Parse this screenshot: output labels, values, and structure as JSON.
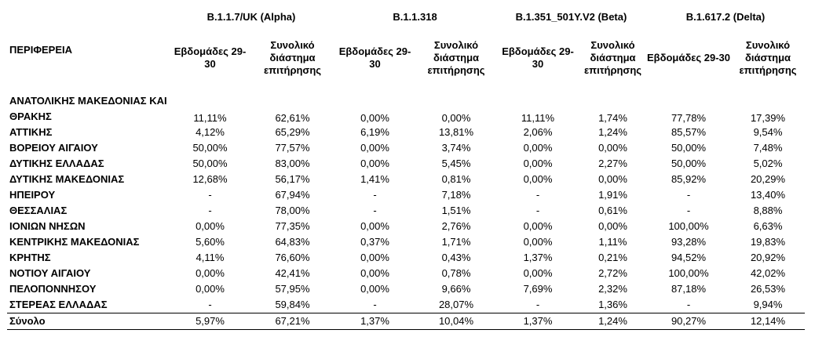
{
  "header": {
    "region_label": "ΠΕΡΙΦΕΡΕΙΑ",
    "variants": [
      {
        "name": "B.1.1.7/UK  (Alpha)",
        "weeks_label": "Εβδομάδες 29-30",
        "total_label": "Συνολικό διάστημα επιτήρησης"
      },
      {
        "name": "B.1.1.318",
        "weeks_label": "Εβδομάδες 29-30",
        "total_label": "Συνολικό διάστημα επιτήρησης"
      },
      {
        "name": "B.1.351_501Y.V2 (Beta)",
        "weeks_label": "Εβδομάδες 29-30",
        "total_label": "Συνολικό διάστημα επιτήρησης"
      },
      {
        "name": "B.1.617.2 (Delta)",
        "weeks_label": "Εβδομάδες 29-30",
        "total_label": "Συνολικό διάστημα επιτήρησης"
      }
    ]
  },
  "rows": [
    {
      "region": "ΑΝΑΤΟΛΙΚΗΣ ΜΑΚΕΔΟΝΙΑΣ ΚΑΙ ΘΡΑΚΗΣ",
      "values": [
        "11,11%",
        "62,61%",
        "0,00%",
        "0,00%",
        "11,11%",
        "1,74%",
        "77,78%",
        "17,39%"
      ]
    },
    {
      "region": "ΑΤΤΙΚΗΣ",
      "values": [
        "4,12%",
        "65,29%",
        "6,19%",
        "13,81%",
        "2,06%",
        "1,24%",
        "85,57%",
        "9,54%"
      ]
    },
    {
      "region": "ΒΟΡΕΙΟΥ ΑΙΓΑΙΟΥ",
      "values": [
        "50,00%",
        "77,57%",
        "0,00%",
        "3,74%",
        "0,00%",
        "0,00%",
        "50,00%",
        "7,48%"
      ]
    },
    {
      "region": "ΔΥΤΙΚΗΣ ΕΛΛΑΔΑΣ",
      "values": [
        "50,00%",
        "83,00%",
        "0,00%",
        "5,45%",
        "0,00%",
        "2,27%",
        "50,00%",
        "5,02%"
      ]
    },
    {
      "region": "ΔΥΤΙΚΗΣ ΜΑΚΕΔΟΝΙΑΣ",
      "values": [
        "12,68%",
        "56,17%",
        "1,41%",
        "0,81%",
        "0,00%",
        "0,00%",
        "85,92%",
        "20,29%"
      ]
    },
    {
      "region": "ΗΠΕΙΡΟΥ",
      "values": [
        "-",
        "67,94%",
        "-",
        "7,18%",
        "-",
        "1,91%",
        "-",
        "13,40%"
      ]
    },
    {
      "region": "ΘΕΣΣΑΛΙΑΣ",
      "values": [
        "-",
        "78,00%",
        "-",
        "1,51%",
        "-",
        "0,61%",
        "-",
        "8,88%"
      ]
    },
    {
      "region": "ΙΟΝΙΩΝ ΝΗΣΩΝ",
      "values": [
        "0,00%",
        "77,35%",
        "0,00%",
        "2,76%",
        "0,00%",
        "0,00%",
        "100,00%",
        "6,63%"
      ]
    },
    {
      "region": "ΚΕΝΤΡΙΚΗΣ ΜΑΚΕΔΟΝΙΑΣ",
      "values": [
        "5,60%",
        "64,83%",
        "0,37%",
        "1,71%",
        "0,00%",
        "1,11%",
        "93,28%",
        "19,83%"
      ]
    },
    {
      "region": "ΚΡΗΤΗΣ",
      "values": [
        "4,11%",
        "76,60%",
        "0,00%",
        "0,43%",
        "1,37%",
        "0,21%",
        "94,52%",
        "20,92%"
      ]
    },
    {
      "region": "ΝΟΤΙΟΥ ΑΙΓΑΙΟΥ",
      "values": [
        "0,00%",
        "42,41%",
        "0,00%",
        "0,78%",
        "0,00%",
        "2,72%",
        "100,00%",
        "42,02%"
      ]
    },
    {
      "region": "ΠΕΛΟΠΟΝΝΗΣΟΥ",
      "values": [
        "0,00%",
        "57,95%",
        "0,00%",
        "9,66%",
        "7,69%",
        "2,32%",
        "87,18%",
        "26,53%"
      ]
    },
    {
      "region": "ΣΤΕΡΕΑΣ ΕΛΛΑΔΑΣ",
      "values": [
        "-",
        "59,84%",
        "-",
        "28,07%",
        "-",
        "1,36%",
        "-",
        "9,94%"
      ]
    }
  ],
  "total": {
    "region": "Σύνολο",
    "values": [
      "5,97%",
      "67,21%",
      "1,37%",
      "10,04%",
      "1,37%",
      "1,24%",
      "90,27%",
      "12,14%"
    ]
  }
}
